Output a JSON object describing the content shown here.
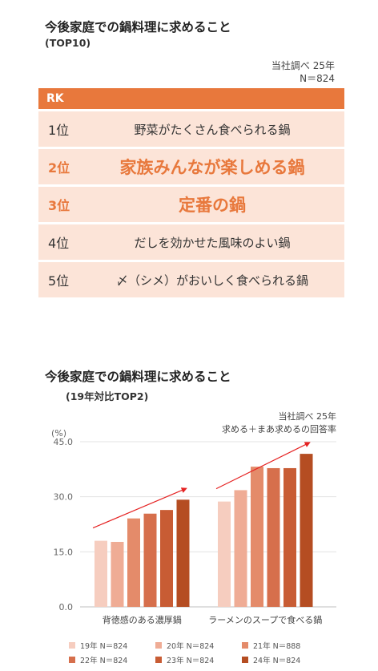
{
  "ranking": {
    "title": "今後家庭での鍋料理に求めること",
    "subtitle": "(TOP10)",
    "source_line1": "当社調べ 25年",
    "source_line2": "N＝824",
    "header": "RK",
    "rows": [
      {
        "rank": "1位",
        "item": "野菜がたくさん食べられる鍋"
      },
      {
        "rank": "2位",
        "item": "家族みんなが楽しめる鍋"
      },
      {
        "rank": "3位",
        "item": "定番の鍋"
      },
      {
        "rank": "4位",
        "item": "だしを効かせた風味のよい鍋"
      },
      {
        "rank": "5位",
        "item": "〆（シメ）がおいしく食べられる鍋"
      }
    ],
    "highlight_color": "#e8783c",
    "row_color": "#fce4d8"
  },
  "chart_data": {
    "type": "bar",
    "title": "今後家庭での鍋料理に求めること",
    "subtitle": "(19年対比TOP2)",
    "source_line1": "当社調べ 25年",
    "source_line2": "求める＋まあ求めるの回答率",
    "ylabel": "(%)",
    "ylim": [
      0,
      45
    ],
    "yticks": [
      "0.0",
      "15.0",
      "30.0",
      "45.0"
    ],
    "categories": [
      "背徳感のある濃厚鍋",
      "ラーメンのスープで食べる鍋"
    ],
    "series": [
      {
        "name": "19年 N＝824",
        "color": "#f6cdbf",
        "values": [
          18.0,
          28.7
        ]
      },
      {
        "name": "20年 N＝824",
        "color": "#efac95",
        "values": [
          17.7,
          31.8
        ]
      },
      {
        "name": "21年 N＝888",
        "color": "#e48b6a",
        "values": [
          24.1,
          38.2
        ]
      },
      {
        "name": "22年 N＝824",
        "color": "#d66f4c",
        "values": [
          25.4,
          37.8
        ]
      },
      {
        "name": "23年 N＝824",
        "color": "#c85c34",
        "values": [
          26.4,
          37.8
        ]
      },
      {
        "name": "24年 N＝824",
        "color": "#b54d22",
        "values": [
          29.2,
          41.7
        ]
      }
    ],
    "legend_position": "bottom"
  }
}
